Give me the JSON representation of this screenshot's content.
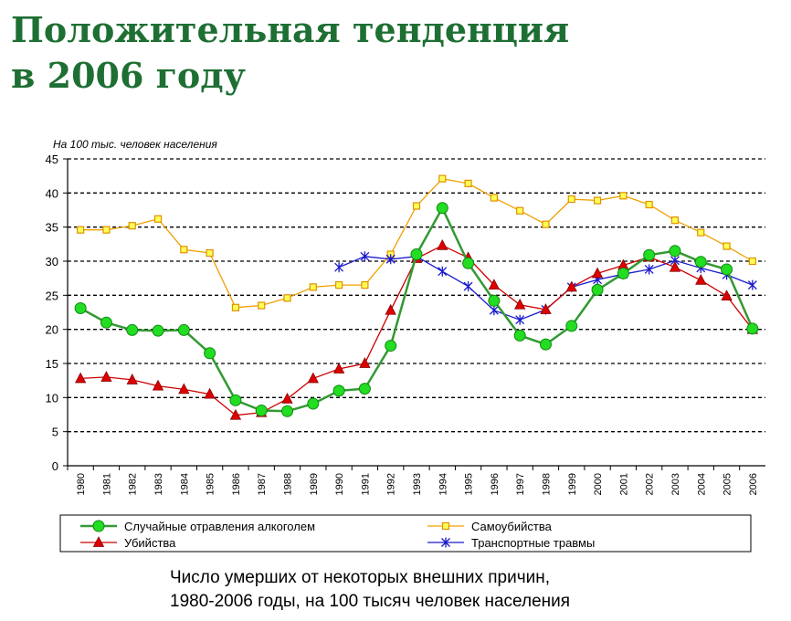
{
  "header": {
    "title_line1": "Положительная тенденция",
    "title_line2": "в 2006 году"
  },
  "caption": {
    "line1": "Число умерших от некоторых внешних причин,",
    "line2": "1980-2006 годы, на 100 тысяч человек населения"
  },
  "chart_data": {
    "type": "line",
    "unit_label": "На 100 тыс. человек населения",
    "x": [
      "1980",
      "1981",
      "1982",
      "1983",
      "1984",
      "1985",
      "1986",
      "1987",
      "1988",
      "1989",
      "1990",
      "1991",
      "1992",
      "1993",
      "1994",
      "1995",
      "1996",
      "1997",
      "1998",
      "1999",
      "2000",
      "2001",
      "2002",
      "2003",
      "2004",
      "2005",
      "2006"
    ],
    "ylim": [
      0,
      45
    ],
    "yticks": [
      0,
      5,
      10,
      15,
      20,
      25,
      30,
      35,
      40,
      45
    ],
    "grid": "dashed horizontal",
    "legend_position": "bottom",
    "series": [
      {
        "name": "Случайные отравления алкоголем",
        "color": "#339933",
        "marker": "circle",
        "values": [
          23.1,
          21.0,
          19.9,
          19.8,
          19.9,
          16.5,
          9.6,
          8.1,
          8.0,
          9.1,
          11.0,
          11.3,
          17.6,
          31.0,
          37.8,
          29.7,
          24.2,
          19.1,
          17.8,
          20.5,
          25.8,
          28.2,
          30.9,
          31.5,
          29.9,
          28.8,
          20.1
        ]
      },
      {
        "name": "Самоубийства",
        "color": "#f0a000",
        "marker": "square",
        "values": [
          34.6,
          34.6,
          35.2,
          36.2,
          31.7,
          31.2,
          23.2,
          23.5,
          24.6,
          26.2,
          26.5,
          26.5,
          31.0,
          38.1,
          42.1,
          41.4,
          39.3,
          37.4,
          35.4,
          39.1,
          38.9,
          39.6,
          38.3,
          36.0,
          34.2,
          32.2,
          30.0
        ]
      },
      {
        "name": "Убийства",
        "color": "#cc0000",
        "marker": "triangle",
        "values": [
          12.8,
          13.0,
          12.6,
          11.7,
          11.2,
          10.5,
          7.4,
          7.8,
          9.8,
          12.8,
          14.2,
          15.0,
          22.8,
          30.4,
          32.3,
          30.5,
          26.5,
          23.6,
          22.9,
          26.2,
          28.2,
          29.4,
          30.6,
          29.1,
          27.2,
          24.9,
          20.0
        ]
      },
      {
        "name": "Транспортные травмы",
        "color": "#1a1acc",
        "marker": "asterisk",
        "values": [
          null,
          null,
          null,
          null,
          null,
          null,
          null,
          null,
          null,
          null,
          29.1,
          30.7,
          30.3,
          30.7,
          28.5,
          26.3,
          22.8,
          21.4,
          22.9,
          26.2,
          27.3,
          28.1,
          28.8,
          30.1,
          29.0,
          28.0,
          26.5
        ]
      }
    ]
  }
}
